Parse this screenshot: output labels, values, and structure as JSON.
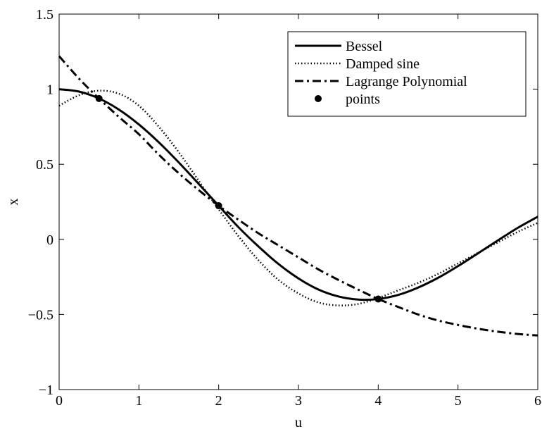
{
  "chart_data": {
    "type": "line",
    "xlabel": "u",
    "ylabel": "x",
    "xlim": [
      0,
      6
    ],
    "ylim": [
      -1,
      1.5
    ],
    "xticks": [
      0,
      1,
      2,
      3,
      4,
      5,
      6
    ],
    "xtick_labels": [
      "0",
      "1",
      "2",
      "3",
      "4",
      "5",
      "6"
    ],
    "yticks": [
      -1,
      -0.5,
      0,
      0.5,
      1,
      1.5
    ],
    "ytick_labels": [
      "−1",
      "−0.5",
      "0",
      "0.5",
      "1",
      "1.5"
    ],
    "grid": false,
    "legend_position": "top-right",
    "series": [
      {
        "name": "Bessel",
        "style": "solid",
        "x": [
          0,
          0.25,
          0.5,
          0.75,
          1,
          1.25,
          1.5,
          1.75,
          2,
          2.25,
          2.5,
          2.75,
          3,
          3.25,
          3.5,
          3.75,
          4,
          4.25,
          4.5,
          4.75,
          5,
          5.25,
          5.5,
          5.75,
          6
        ],
        "y": [
          1.0,
          0.984,
          0.938,
          0.864,
          0.765,
          0.646,
          0.512,
          0.369,
          0.224,
          0.08,
          -0.048,
          -0.164,
          -0.26,
          -0.334,
          -0.38,
          -0.401,
          -0.397,
          -0.37,
          -0.321,
          -0.256,
          -0.178,
          -0.093,
          -0.007,
          0.077,
          0.151
        ]
      },
      {
        "name": "Damped sine",
        "style": "dotted",
        "x": [
          0,
          0.25,
          0.5,
          0.75,
          1,
          1.25,
          1.5,
          1.75,
          2,
          2.25,
          2.5,
          2.75,
          3,
          3.25,
          3.5,
          3.75,
          4,
          4.25,
          4.5,
          4.75,
          5,
          5.25,
          5.5,
          5.75,
          6
        ],
        "y": [
          0.89,
          0.96,
          0.99,
          0.97,
          0.89,
          0.75,
          0.58,
          0.39,
          0.2,
          0.02,
          -0.14,
          -0.27,
          -0.36,
          -0.42,
          -0.44,
          -0.43,
          -0.39,
          -0.34,
          -0.29,
          -0.23,
          -0.16,
          -0.09,
          -0.02,
          0.05,
          0.11
        ]
      },
      {
        "name": "Lagrange Polynomial",
        "style": "dashdot",
        "x": [
          0,
          0.25,
          0.5,
          0.75,
          1,
          1.25,
          1.5,
          1.75,
          2,
          2.25,
          2.5,
          2.75,
          3,
          3.25,
          3.5,
          3.75,
          4,
          4.25,
          4.5,
          4.75,
          5,
          5.25,
          5.5,
          5.75,
          6
        ],
        "y": [
          1.22,
          1.07,
          0.938,
          0.815,
          0.7,
          0.564,
          0.44,
          0.328,
          0.224,
          0.13,
          0.04,
          -0.04,
          -0.12,
          -0.2,
          -0.27,
          -0.335,
          -0.397,
          -0.45,
          -0.5,
          -0.54,
          -0.57,
          -0.595,
          -0.615,
          -0.63,
          -0.64
        ]
      },
      {
        "name": "points",
        "style": "markers",
        "x": [
          0.5,
          2,
          4
        ],
        "y": [
          0.938,
          0.224,
          -0.397
        ]
      }
    ]
  }
}
